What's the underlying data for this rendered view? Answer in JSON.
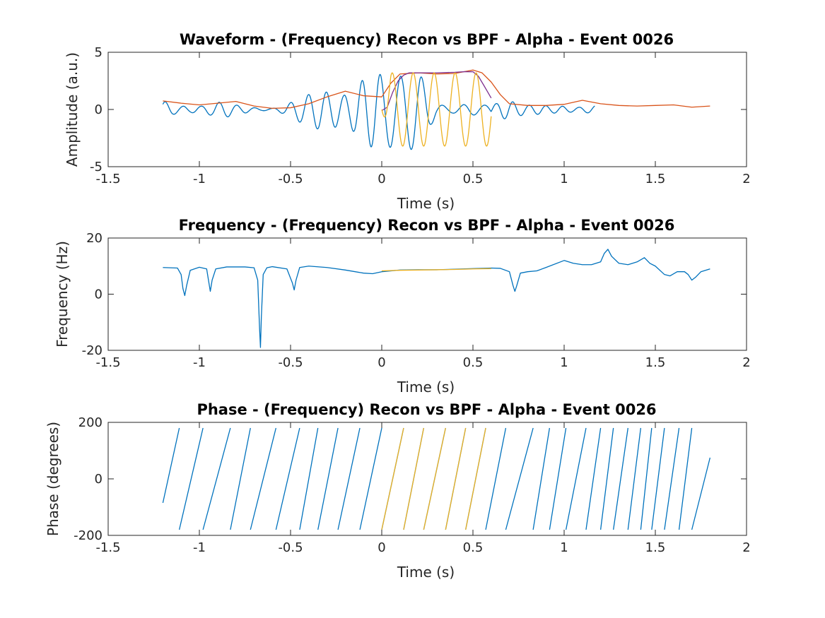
{
  "chart_data": [
    {
      "type": "line",
      "title": "Waveform - (Frequency) Recon vs BPF - Alpha - Event 0026",
      "xlabel": "Time (s)",
      "ylabel": "Amplitude (a.u.)",
      "xlim": [
        -1.5,
        2
      ],
      "ylim": [
        -5,
        5
      ],
      "xticks": [
        -1.5,
        -1,
        -0.5,
        0,
        0.5,
        1,
        1.5,
        2
      ],
      "xtick_labels": [
        "-1.5",
        "-1",
        "-0.5",
        "0",
        "0.5",
        "1",
        "1.5",
        "2"
      ],
      "yticks": [
        -5,
        0,
        5
      ],
      "ytick_labels": [
        "-5",
        "0",
        "5"
      ],
      "grid": false,
      "series": [
        {
          "color": "#0072BD",
          "style": "oscillation",
          "x": [
            -1.2,
            -1.17,
            -1.14,
            -1.11,
            -1.08,
            -1.05,
            -1.02,
            -0.99,
            -0.96,
            -0.93,
            -0.9,
            -0.87,
            -0.84,
            -0.81,
            -0.78,
            -0.75,
            -0.72,
            -0.69,
            -0.66,
            -0.63,
            -0.6,
            -0.57,
            -0.54,
            -0.51,
            -0.48,
            -0.45,
            -0.42,
            -0.39,
            -0.36,
            -0.33,
            -0.3,
            -0.27,
            -0.24,
            -0.21,
            -0.18,
            -0.15,
            -0.12,
            -0.09,
            -0.06,
            -0.03,
            0.0,
            0.03,
            0.06,
            0.09,
            0.12,
            0.15,
            0.18,
            0.21,
            0.24,
            0.27,
            0.3,
            0.33,
            0.36,
            0.39,
            0.42,
            0.45,
            0.48,
            0.51,
            0.54,
            0.57,
            0.6,
            0.63,
            0.66,
            0.69,
            0.72,
            0.75,
            0.78,
            0.81,
            0.84,
            0.87,
            0.9,
            0.93,
            0.96,
            0.99,
            1.02,
            1.05,
            1.08,
            1.11,
            1.14,
            1.17,
            1.2,
            1.23,
            1.26,
            1.29,
            1.32,
            1.35,
            1.38,
            1.41,
            1.44,
            1.47,
            1.5,
            1.53,
            1.56,
            1.59,
            1.62,
            1.65,
            1.68,
            1.71,
            1.74,
            1.77,
            1.8
          ],
          "envelope": [
            0.8,
            0.6,
            0.4,
            0.3,
            0.3,
            0.25,
            0.3,
            0.3,
            0.4,
            0.5,
            0.65,
            0.7,
            0.6,
            0.45,
            0.35,
            0.3,
            0.2,
            0.15,
            0.1,
            0.1,
            0.1,
            0.2,
            0.35,
            0.55,
            0.8,
            1.05,
            1.25,
            1.45,
            1.6,
            1.65,
            1.6,
            1.55,
            1.4,
            1.3,
            1.45,
            1.9,
            2.5,
            2.9,
            3.1,
            3.2,
            3.25,
            3.2,
            3.1,
            3.05,
            3.1,
            3.3,
            3.35,
            3.2,
            2.4,
            1.3,
            0.55,
            0.4,
            0.3,
            0.3,
            0.35,
            0.45,
            0.5,
            0.45,
            0.4,
            0.4,
            0.45,
            0.55,
            0.75,
            0.8,
            0.7,
            0.55,
            0.45,
            0.4,
            0.4,
            0.4,
            0.35,
            0.3,
            0.3,
            0.3,
            0.25,
            0.2,
            0.2,
            0.25,
            0.3,
            0.35
          ]
        },
        {
          "color": "#D95319",
          "x": [
            -1.2,
            -1.1,
            -1.0,
            -0.9,
            -0.8,
            -0.7,
            -0.6,
            -0.5,
            -0.4,
            -0.3,
            -0.2,
            -0.1,
            0.0,
            0.05,
            0.1,
            0.2,
            0.3,
            0.4,
            0.5,
            0.55,
            0.6,
            0.65,
            0.7,
            0.8,
            0.9,
            1.0,
            1.1,
            1.2,
            1.3,
            1.4,
            1.5,
            1.6,
            1.7,
            1.8
          ],
          "y": [
            0.75,
            0.55,
            0.4,
            0.55,
            0.7,
            0.3,
            0.1,
            0.15,
            0.5,
            1.1,
            1.6,
            1.2,
            1.1,
            2.3,
            3.1,
            3.2,
            3.1,
            3.15,
            3.45,
            3.2,
            2.4,
            1.3,
            0.5,
            0.35,
            0.35,
            0.45,
            0.8,
            0.5,
            0.35,
            0.3,
            0.35,
            0.4,
            0.2,
            0.3
          ]
        },
        {
          "color": "#7E2F8E",
          "x": [
            0.0,
            0.03,
            0.06,
            0.09,
            0.12,
            0.15,
            0.2,
            0.3,
            0.4,
            0.45,
            0.5,
            0.53,
            0.56,
            0.6
          ],
          "y": [
            -0.1,
            0.2,
            1.5,
            2.5,
            3.0,
            3.2,
            3.2,
            3.2,
            3.25,
            3.3,
            3.3,
            2.9,
            2.1,
            1.0
          ]
        },
        {
          "color": "#EDB120",
          "style": "oscillation",
          "x": [
            0.0,
            0.6
          ],
          "amplitude": 3.2,
          "frequency_hz": 8.7
        }
      ]
    },
    {
      "type": "line",
      "title": "Frequency - (Frequency) Recon vs BPF - Alpha - Event 0026",
      "xlabel": "Time (s)",
      "ylabel": "Frequency (Hz)",
      "xlim": [
        -1.5,
        2
      ],
      "ylim": [
        -20,
        20
      ],
      "xticks": [
        -1.5,
        -1,
        -0.5,
        0,
        0.5,
        1,
        1.5,
        2
      ],
      "xtick_labels": [
        "-1.5",
        "-1",
        "-0.5",
        "0",
        "0.5",
        "1",
        "1.5",
        "2"
      ],
      "yticks": [
        -20,
        0,
        20
      ],
      "ytick_labels": [
        "-20",
        "0",
        "20"
      ],
      "grid": false,
      "series": [
        {
          "color": "#0072BD",
          "x": [
            -1.2,
            -1.12,
            -1.1,
            -1.09,
            -1.08,
            -1.07,
            -1.05,
            -1.0,
            -0.96,
            -0.95,
            -0.94,
            -0.93,
            -0.91,
            -0.85,
            -0.75,
            -0.7,
            -0.68,
            -0.67,
            -0.665,
            -0.66,
            -0.65,
            -0.63,
            -0.6,
            -0.52,
            -0.49,
            -0.48,
            -0.47,
            -0.45,
            -0.4,
            -0.3,
            -0.2,
            -0.1,
            -0.05,
            0.0,
            0.1,
            0.2,
            0.3,
            0.4,
            0.5,
            0.6,
            0.65,
            0.7,
            0.72,
            0.73,
            0.74,
            0.76,
            0.8,
            0.85,
            0.9,
            1.0,
            1.05,
            1.1,
            1.15,
            1.2,
            1.22,
            1.24,
            1.26,
            1.3,
            1.35,
            1.4,
            1.44,
            1.47,
            1.5,
            1.55,
            1.58,
            1.62,
            1.66,
            1.68,
            1.7,
            1.72,
            1.75,
            1.8
          ],
          "y": [
            9.5,
            9.3,
            7.0,
            2.0,
            -0.5,
            3.0,
            8.5,
            9.6,
            9.0,
            5.0,
            1.0,
            5.0,
            9.0,
            9.7,
            9.7,
            9.4,
            5.0,
            -12.0,
            -19.0,
            -8.0,
            7.0,
            9.4,
            9.8,
            9.0,
            4.0,
            1.5,
            5.0,
            9.5,
            10.0,
            9.5,
            8.6,
            7.5,
            7.3,
            8.0,
            8.6,
            8.7,
            8.7,
            8.9,
            9.1,
            9.3,
            9.2,
            8.0,
            3.0,
            1.0,
            3.0,
            7.5,
            8.0,
            8.3,
            9.5,
            12.0,
            11.0,
            10.5,
            10.5,
            11.5,
            14.5,
            16.0,
            13.5,
            11.0,
            10.5,
            11.5,
            13.0,
            11.0,
            10.0,
            7.0,
            6.5,
            8.0,
            8.0,
            7.0,
            5.0,
            6.0,
            8.0,
            9.0
          ]
        },
        {
          "color": "#EDB120",
          "x": [
            0.0,
            0.1,
            0.2,
            0.3,
            0.4,
            0.5,
            0.6
          ],
          "y": [
            8.3,
            8.5,
            8.6,
            8.7,
            8.8,
            9.0,
            9.1
          ]
        }
      ]
    },
    {
      "type": "line",
      "title": "Phase - (Frequency) Recon vs BPF - Alpha - Event 0026",
      "xlabel": "Time (s)",
      "ylabel": "Phase (degrees)",
      "xlim": [
        -1.5,
        2
      ],
      "ylim": [
        -200,
        200
      ],
      "xticks": [
        -1.5,
        -1,
        -0.5,
        0,
        0.5,
        1,
        1.5,
        2
      ],
      "xtick_labels": [
        "-1.5",
        "-1",
        "-0.5",
        "0",
        "0.5",
        "1",
        "1.5",
        "2"
      ],
      "yticks": [
        -200,
        0,
        200
      ],
      "ytick_labels": [
        "-200",
        "0",
        "200"
      ],
      "grid": false,
      "series": [
        {
          "color": "#0072BD",
          "style": "sawtooth",
          "x_start": -1.2,
          "x_end": 1.8,
          "start_phase": -85,
          "end_phase": 75,
          "wraps_at": [
            -1.11,
            -0.98,
            -0.83,
            -0.72,
            -0.58,
            -0.45,
            -0.35,
            -0.24,
            -0.12,
            0.0,
            0.12,
            0.23,
            0.35,
            0.46,
            0.57,
            0.68,
            0.83,
            0.92,
            1.01,
            1.12,
            1.2,
            1.27,
            1.35,
            1.42,
            1.48,
            1.55,
            1.63,
            1.7
          ]
        },
        {
          "color": "#EDB120",
          "style": "sawtooth",
          "x_start": 0.0,
          "x_end": 0.57,
          "start_phase": -180,
          "end_phase": 180,
          "wraps_at": [
            0.12,
            0.23,
            0.35,
            0.46
          ]
        }
      ]
    }
  ]
}
